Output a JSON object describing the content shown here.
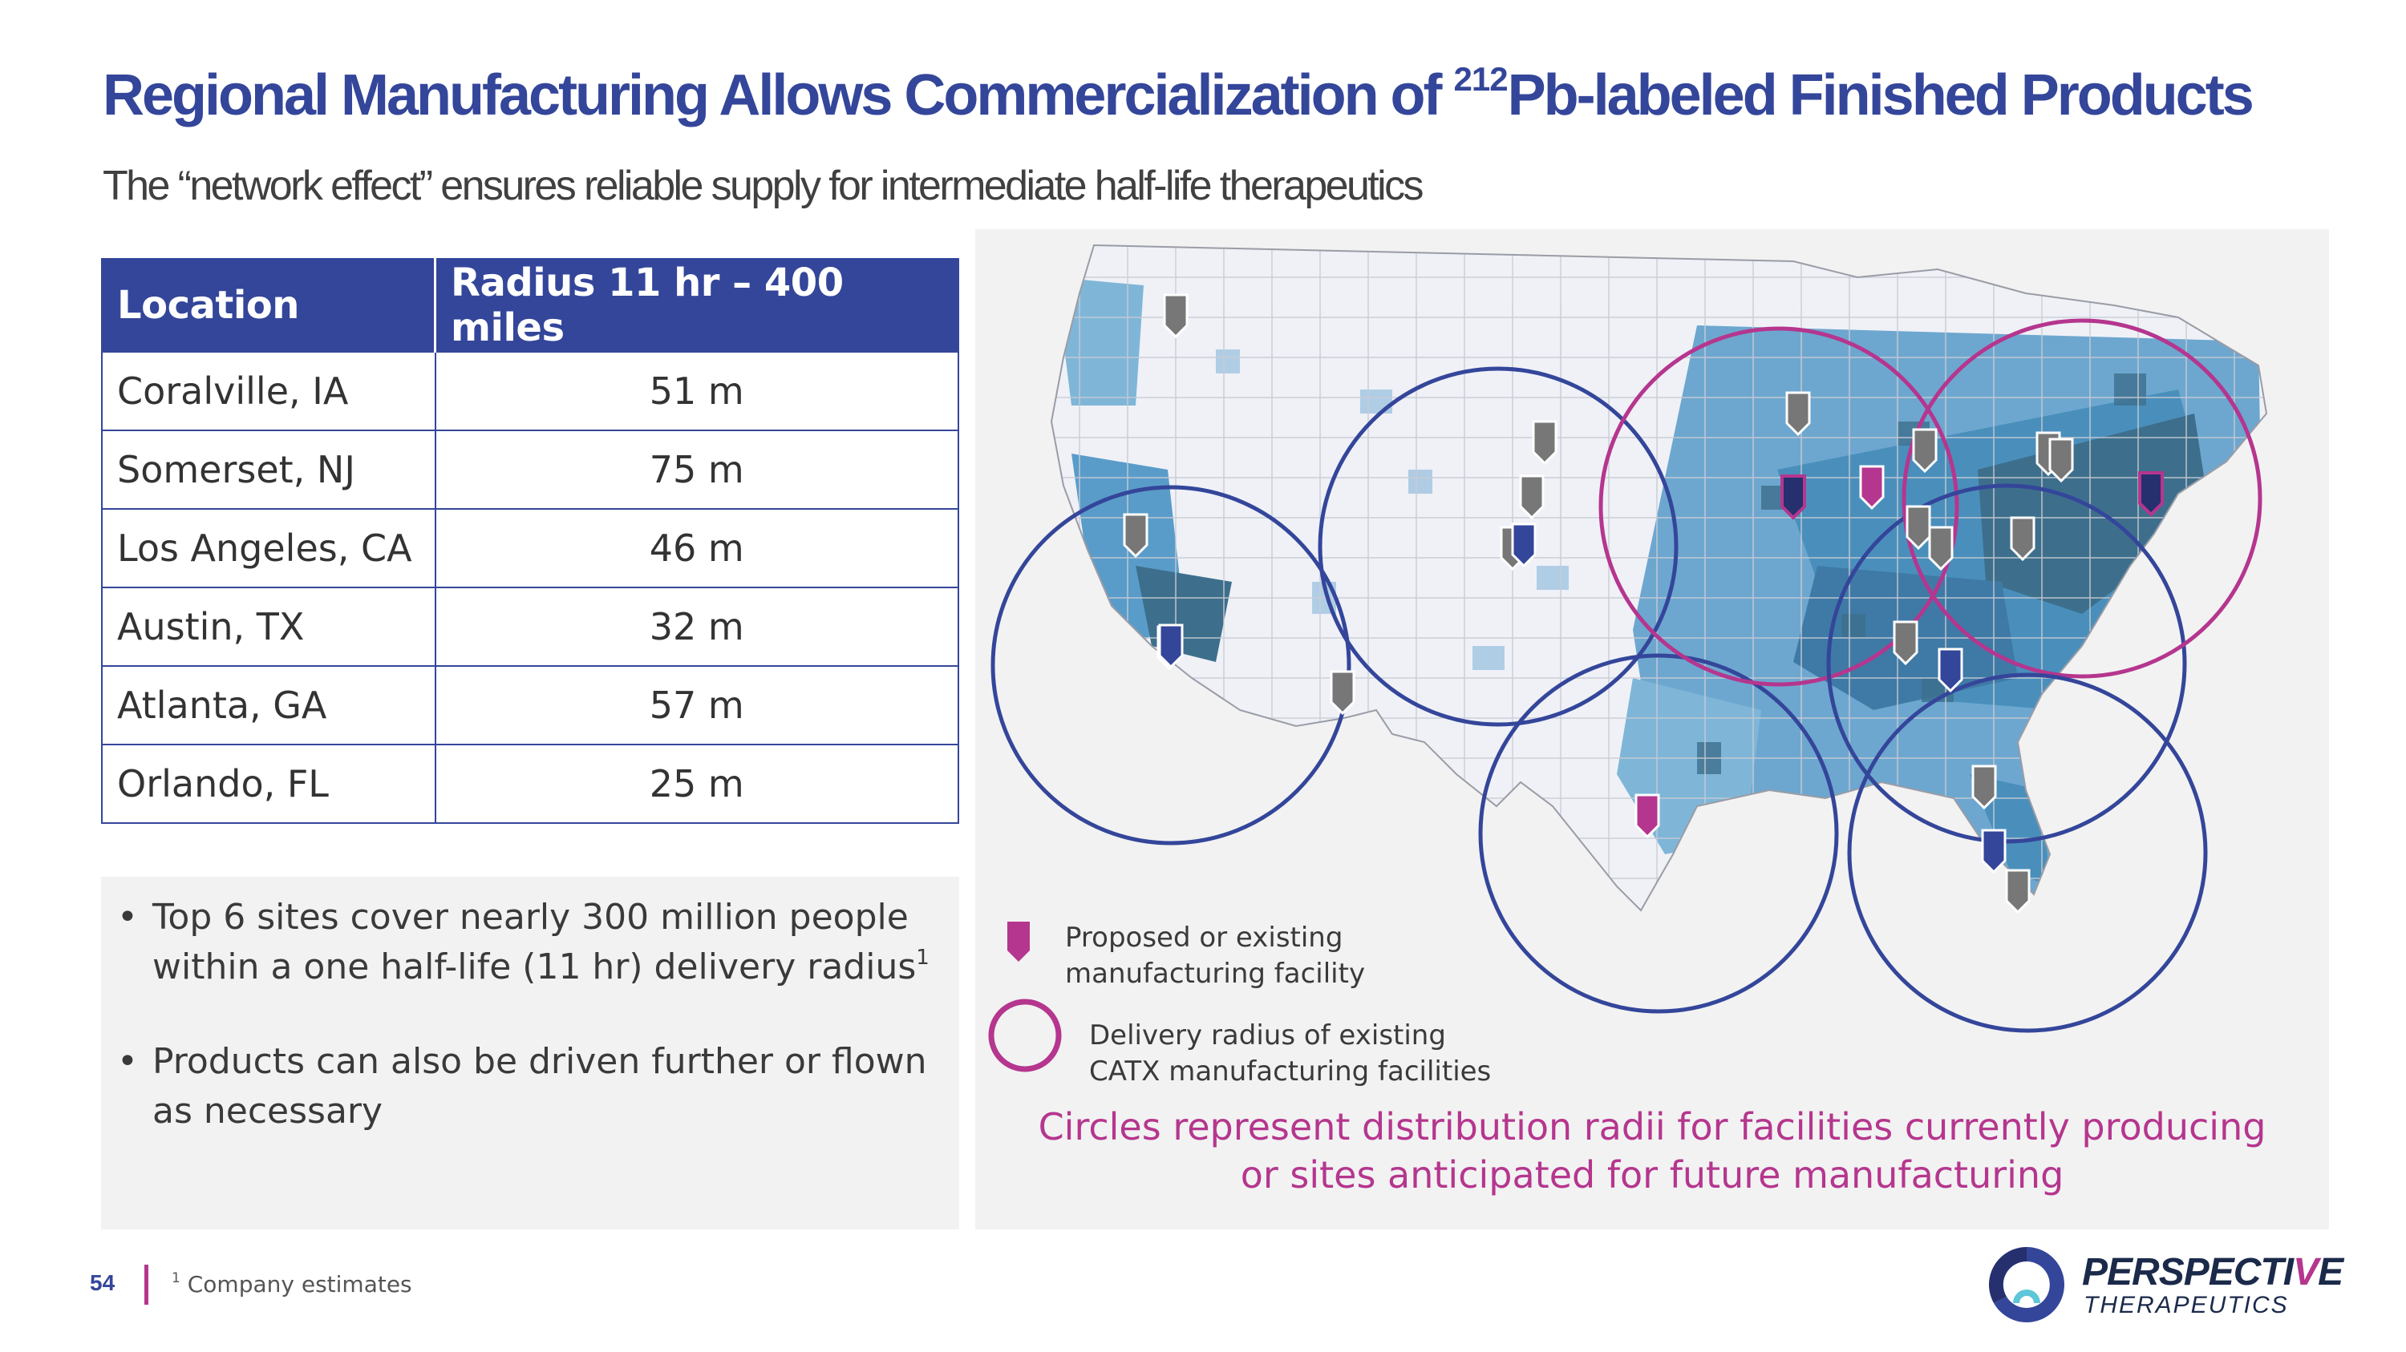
{
  "header": {
    "title_main": "Regional Manufacturing Allows Commercialization of ",
    "title_sup": "212",
    "title_end": "Pb-labeled Finished Products",
    "subtitle": "The “network effect” ensures reliable supply for intermediate half-life therapeutics"
  },
  "table": {
    "headers": [
      "Location",
      "Radius 11 hr – 400 miles"
    ],
    "rows": [
      [
        "Coralville, IA",
        "51 m"
      ],
      [
        "Somerset, NJ",
        "75 m"
      ],
      [
        "Los Angeles, CA",
        "46 m"
      ],
      [
        "Austin, TX",
        "32 m"
      ],
      [
        "Atlanta, GA",
        "57 m"
      ],
      [
        "Orlando, FL",
        "25 m"
      ]
    ]
  },
  "bullets": [
    {
      "text": "Top 6 sites cover nearly 300 million people within a one half-life (11 hr) delivery radius",
      "sup": "1"
    },
    {
      "text": "Products can also be driven further or flown as necessary",
      "sup": ""
    }
  ],
  "map": {
    "legend": {
      "facility": "Proposed or existing manufacturing facility",
      "radius": "Delivery radius of existing CATX manufacturing facilities"
    },
    "caption_line1": "Circles represent distribution radii for facilities currently producing",
    "caption_line2": "or sites anticipated for future manufacturing"
  },
  "footer": {
    "page_number": "54",
    "footnote_mark": "1",
    "footnote": "Company estimates"
  },
  "logo": {
    "name_part1": "PERSPECTI",
    "name_part2": "V",
    "name_part3": "E",
    "subtitle": "THERAPEUTICS"
  },
  "colors": {
    "brand_blue": "#34469a",
    "brand_magenta": "#b5368e",
    "gray_marker": "#777777"
  }
}
